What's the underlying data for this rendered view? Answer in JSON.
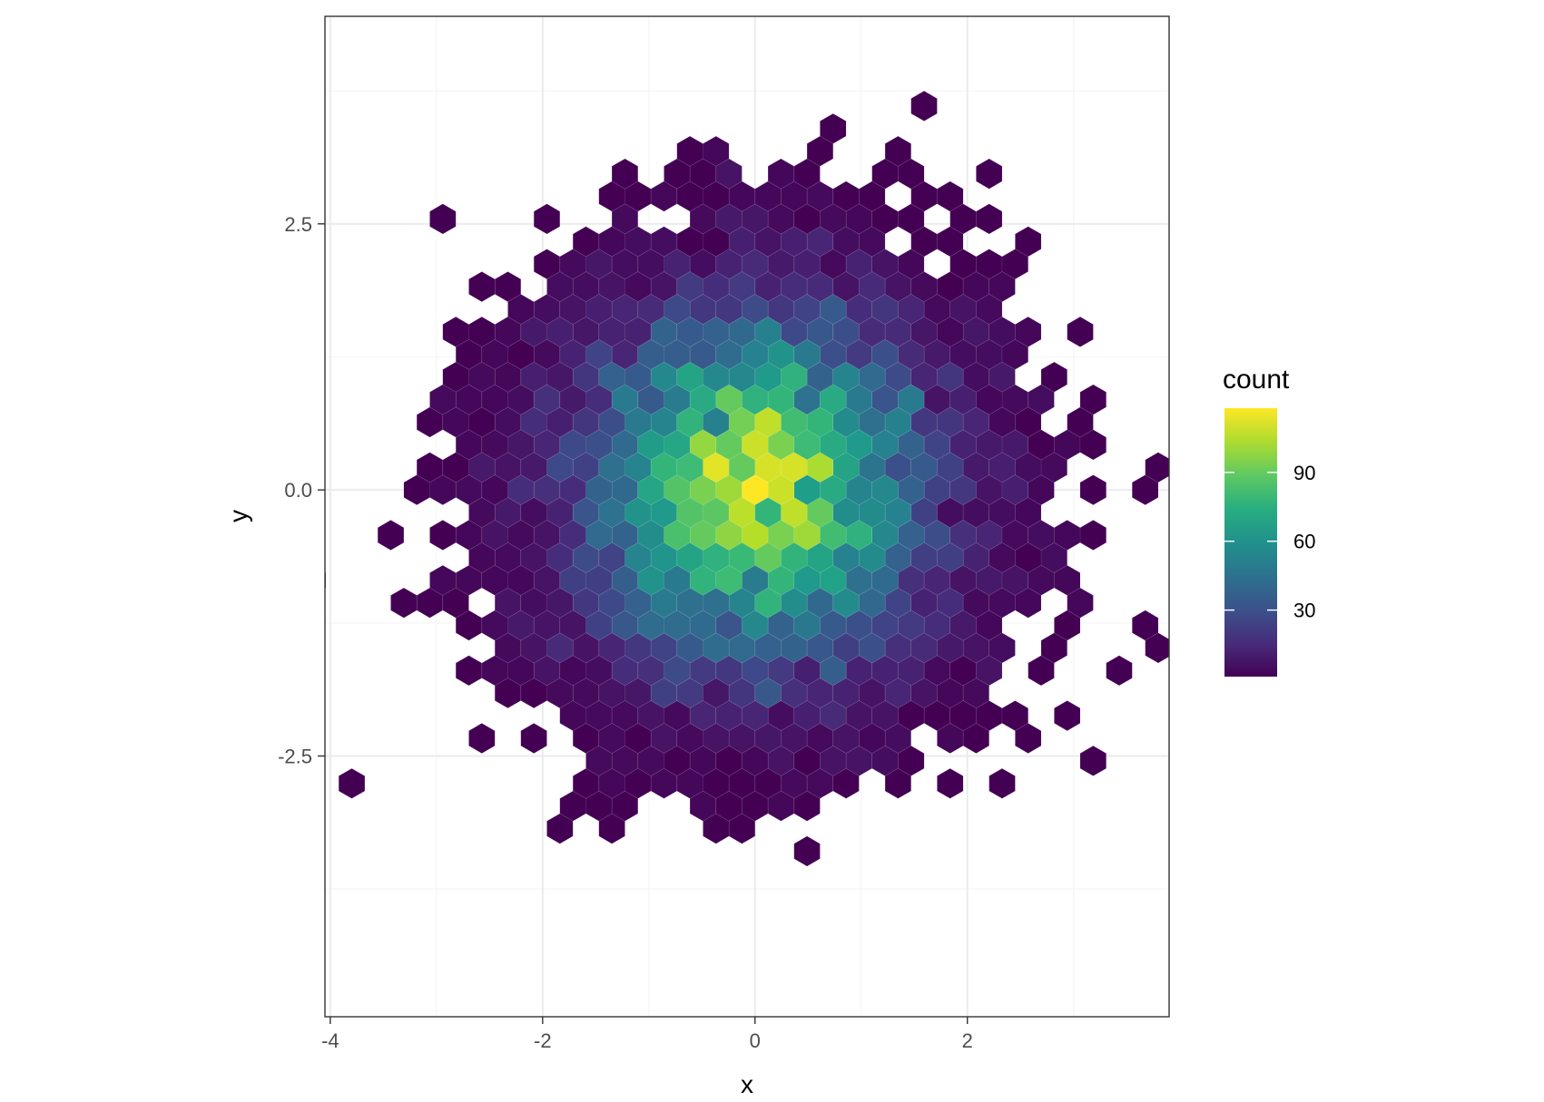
{
  "chart_data": {
    "type": "heatmap",
    "subtype": "hexbin",
    "xlabel": "x",
    "ylabel": "y",
    "xlim": [
      -4.05,
      3.9
    ],
    "ylim": [
      -4.95,
      4.45
    ],
    "x_ticks": [
      -4,
      -2,
      0,
      2
    ],
    "x_tick_labels": [
      "-4",
      "-2",
      "0",
      "2"
    ],
    "y_ticks": [
      -2.5,
      0.0,
      2.5
    ],
    "y_tick_labels": [
      "-2.5",
      "0.0",
      "2.5"
    ],
    "grid": true,
    "legend": {
      "title": "count",
      "position": "right",
      "breaks": [
        30,
        60,
        90
      ],
      "break_labels": [
        "30",
        "60",
        "90"
      ],
      "limits": [
        1,
        118
      ],
      "palette": "viridis"
    },
    "colors": {
      "low": "#440154",
      "high": "#fde725",
      "panel_border": "#333333",
      "grid_major": "#ebebeb",
      "grid_minor": "#f5f5f5"
    },
    "binwidth": [
      0.245,
      0.245
    ],
    "distribution": "standard bivariate normal, n = 10000",
    "peak_count": 118
  }
}
